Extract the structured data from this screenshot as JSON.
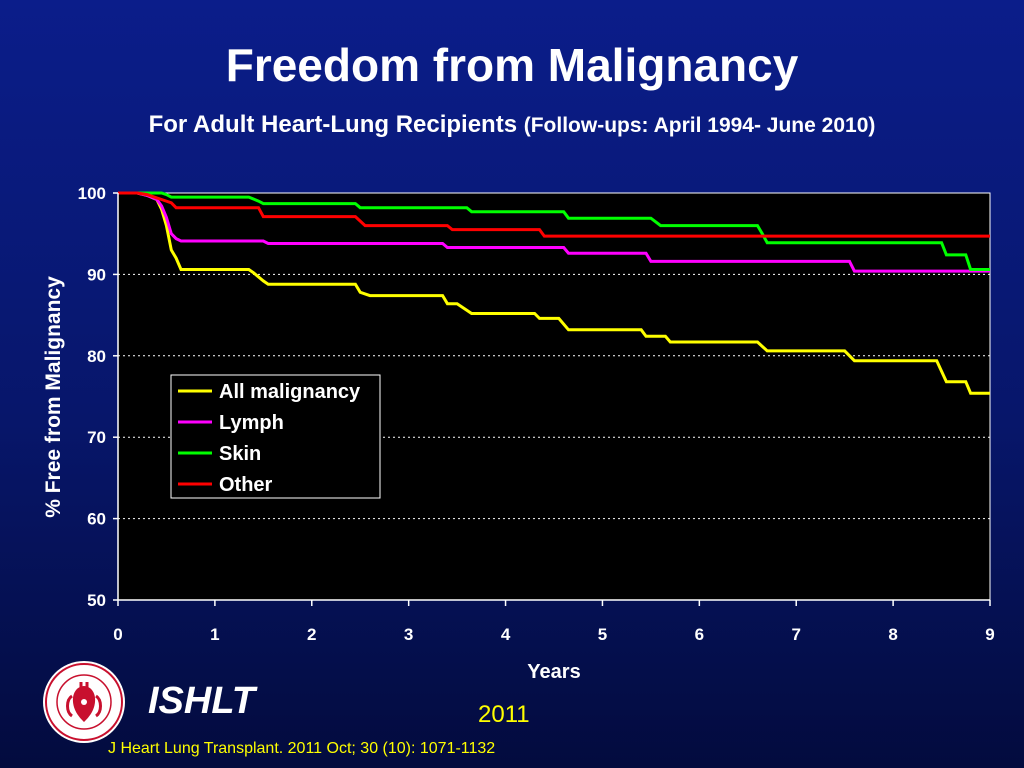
{
  "slide": {
    "title": "Freedom from Malignancy",
    "subtitle_main": "For Adult Heart-Lung Recipients",
    "subtitle_note": "(Follow-ups: April 1994- June 2010)",
    "org": "ISHLT",
    "year": "2011",
    "citation": "J Heart Lung Transplant. 2011 Oct; 30 (10): 1071-1132",
    "logo_text": "INTERNATIONAL SOCIETY FOR HEART & LUNG TRANSPLANTATION"
  },
  "colors": {
    "background": "#07166a",
    "plot_bg": "#000000",
    "all_malignancy": "#ffff00",
    "lymph": "#ff00ff",
    "skin": "#00ff00",
    "other": "#ff0000",
    "footer_text": "#ffff00"
  },
  "chart_data": {
    "type": "line",
    "step": true,
    "xlabel": "Years",
    "ylabel": "% Free from Malignancy",
    "xlim": [
      0,
      9
    ],
    "ylim": [
      50,
      100
    ],
    "xticks": [
      "0",
      "1",
      "2",
      "3",
      "4",
      "5",
      "6",
      "7",
      "8",
      "9"
    ],
    "yticks": [
      "50",
      "60",
      "70",
      "80",
      "90",
      "100"
    ],
    "grid": "horizontal dotted",
    "legend_position": "left-center",
    "series": [
      {
        "name": "All malignancy",
        "color": "#ffff00",
        "points": [
          [
            0,
            100
          ],
          [
            0.2,
            100
          ],
          [
            0.3,
            99.7
          ],
          [
            0.4,
            99.2
          ],
          [
            0.45,
            98
          ],
          [
            0.5,
            96
          ],
          [
            0.55,
            93
          ],
          [
            0.6,
            92
          ],
          [
            0.65,
            90.6
          ],
          [
            1.35,
            90.6
          ],
          [
            1.4,
            90.2
          ],
          [
            1.5,
            89.2
          ],
          [
            1.55,
            88.8
          ],
          [
            2.45,
            88.8
          ],
          [
            2.5,
            87.8
          ],
          [
            2.6,
            87.4
          ],
          [
            3.35,
            87.4
          ],
          [
            3.4,
            86.4
          ],
          [
            3.5,
            86.4
          ],
          [
            3.6,
            85.6
          ],
          [
            3.65,
            85.2
          ],
          [
            4.3,
            85.2
          ],
          [
            4.35,
            84.6
          ],
          [
            4.55,
            84.6
          ],
          [
            4.65,
            83.2
          ],
          [
            5.4,
            83.2
          ],
          [
            5.45,
            82.4
          ],
          [
            5.65,
            82.4
          ],
          [
            5.7,
            81.7
          ],
          [
            6.6,
            81.7
          ],
          [
            6.7,
            80.6
          ],
          [
            7.5,
            80.6
          ],
          [
            7.6,
            79.4
          ],
          [
            8.45,
            79.4
          ],
          [
            8.55,
            76.8
          ],
          [
            8.75,
            76.8
          ],
          [
            8.8,
            75.4
          ],
          [
            9,
            75.4
          ]
        ]
      },
      {
        "name": "Lymph",
        "color": "#ff00ff",
        "points": [
          [
            0,
            100
          ],
          [
            0.2,
            100
          ],
          [
            0.3,
            99.7
          ],
          [
            0.4,
            99.2
          ],
          [
            0.45,
            98.4
          ],
          [
            0.5,
            97
          ],
          [
            0.55,
            95
          ],
          [
            0.6,
            94.4
          ],
          [
            0.65,
            94.1
          ],
          [
            1.5,
            94.1
          ],
          [
            1.55,
            93.8
          ],
          [
            3.35,
            93.8
          ],
          [
            3.4,
            93.3
          ],
          [
            4.6,
            93.3
          ],
          [
            4.65,
            92.6
          ],
          [
            5.45,
            92.6
          ],
          [
            5.5,
            91.6
          ],
          [
            7.55,
            91.6
          ],
          [
            7.6,
            90.4
          ],
          [
            9,
            90.4
          ]
        ]
      },
      {
        "name": "Skin",
        "color": "#00ff00",
        "points": [
          [
            0,
            100
          ],
          [
            0.45,
            100
          ],
          [
            0.5,
            99.8
          ],
          [
            0.55,
            99.5
          ],
          [
            1.35,
            99.5
          ],
          [
            1.45,
            99
          ],
          [
            1.5,
            98.7
          ],
          [
            2.45,
            98.7
          ],
          [
            2.5,
            98.2
          ],
          [
            3.6,
            98.2
          ],
          [
            3.65,
            97.7
          ],
          [
            4.6,
            97.7
          ],
          [
            4.65,
            96.9
          ],
          [
            5.5,
            96.9
          ],
          [
            5.6,
            96
          ],
          [
            6.6,
            96
          ],
          [
            6.65,
            95
          ],
          [
            6.7,
            93.9
          ],
          [
            8.5,
            93.9
          ],
          [
            8.55,
            92.4
          ],
          [
            8.75,
            92.4
          ],
          [
            8.8,
            90.6
          ],
          [
            9,
            90.6
          ]
        ]
      },
      {
        "name": "Other",
        "color": "#ff0000",
        "points": [
          [
            0,
            100
          ],
          [
            0.2,
            100
          ],
          [
            0.3,
            99.8
          ],
          [
            0.4,
            99.4
          ],
          [
            0.45,
            99.2
          ],
          [
            0.55,
            98.8
          ],
          [
            0.6,
            98.2
          ],
          [
            1.45,
            98.2
          ],
          [
            1.5,
            97.1
          ],
          [
            2.45,
            97.1
          ],
          [
            2.55,
            96
          ],
          [
            3.4,
            96
          ],
          [
            3.45,
            95.5
          ],
          [
            4.35,
            95.5
          ],
          [
            4.4,
            94.7
          ],
          [
            9,
            94.7
          ]
        ]
      }
    ]
  }
}
